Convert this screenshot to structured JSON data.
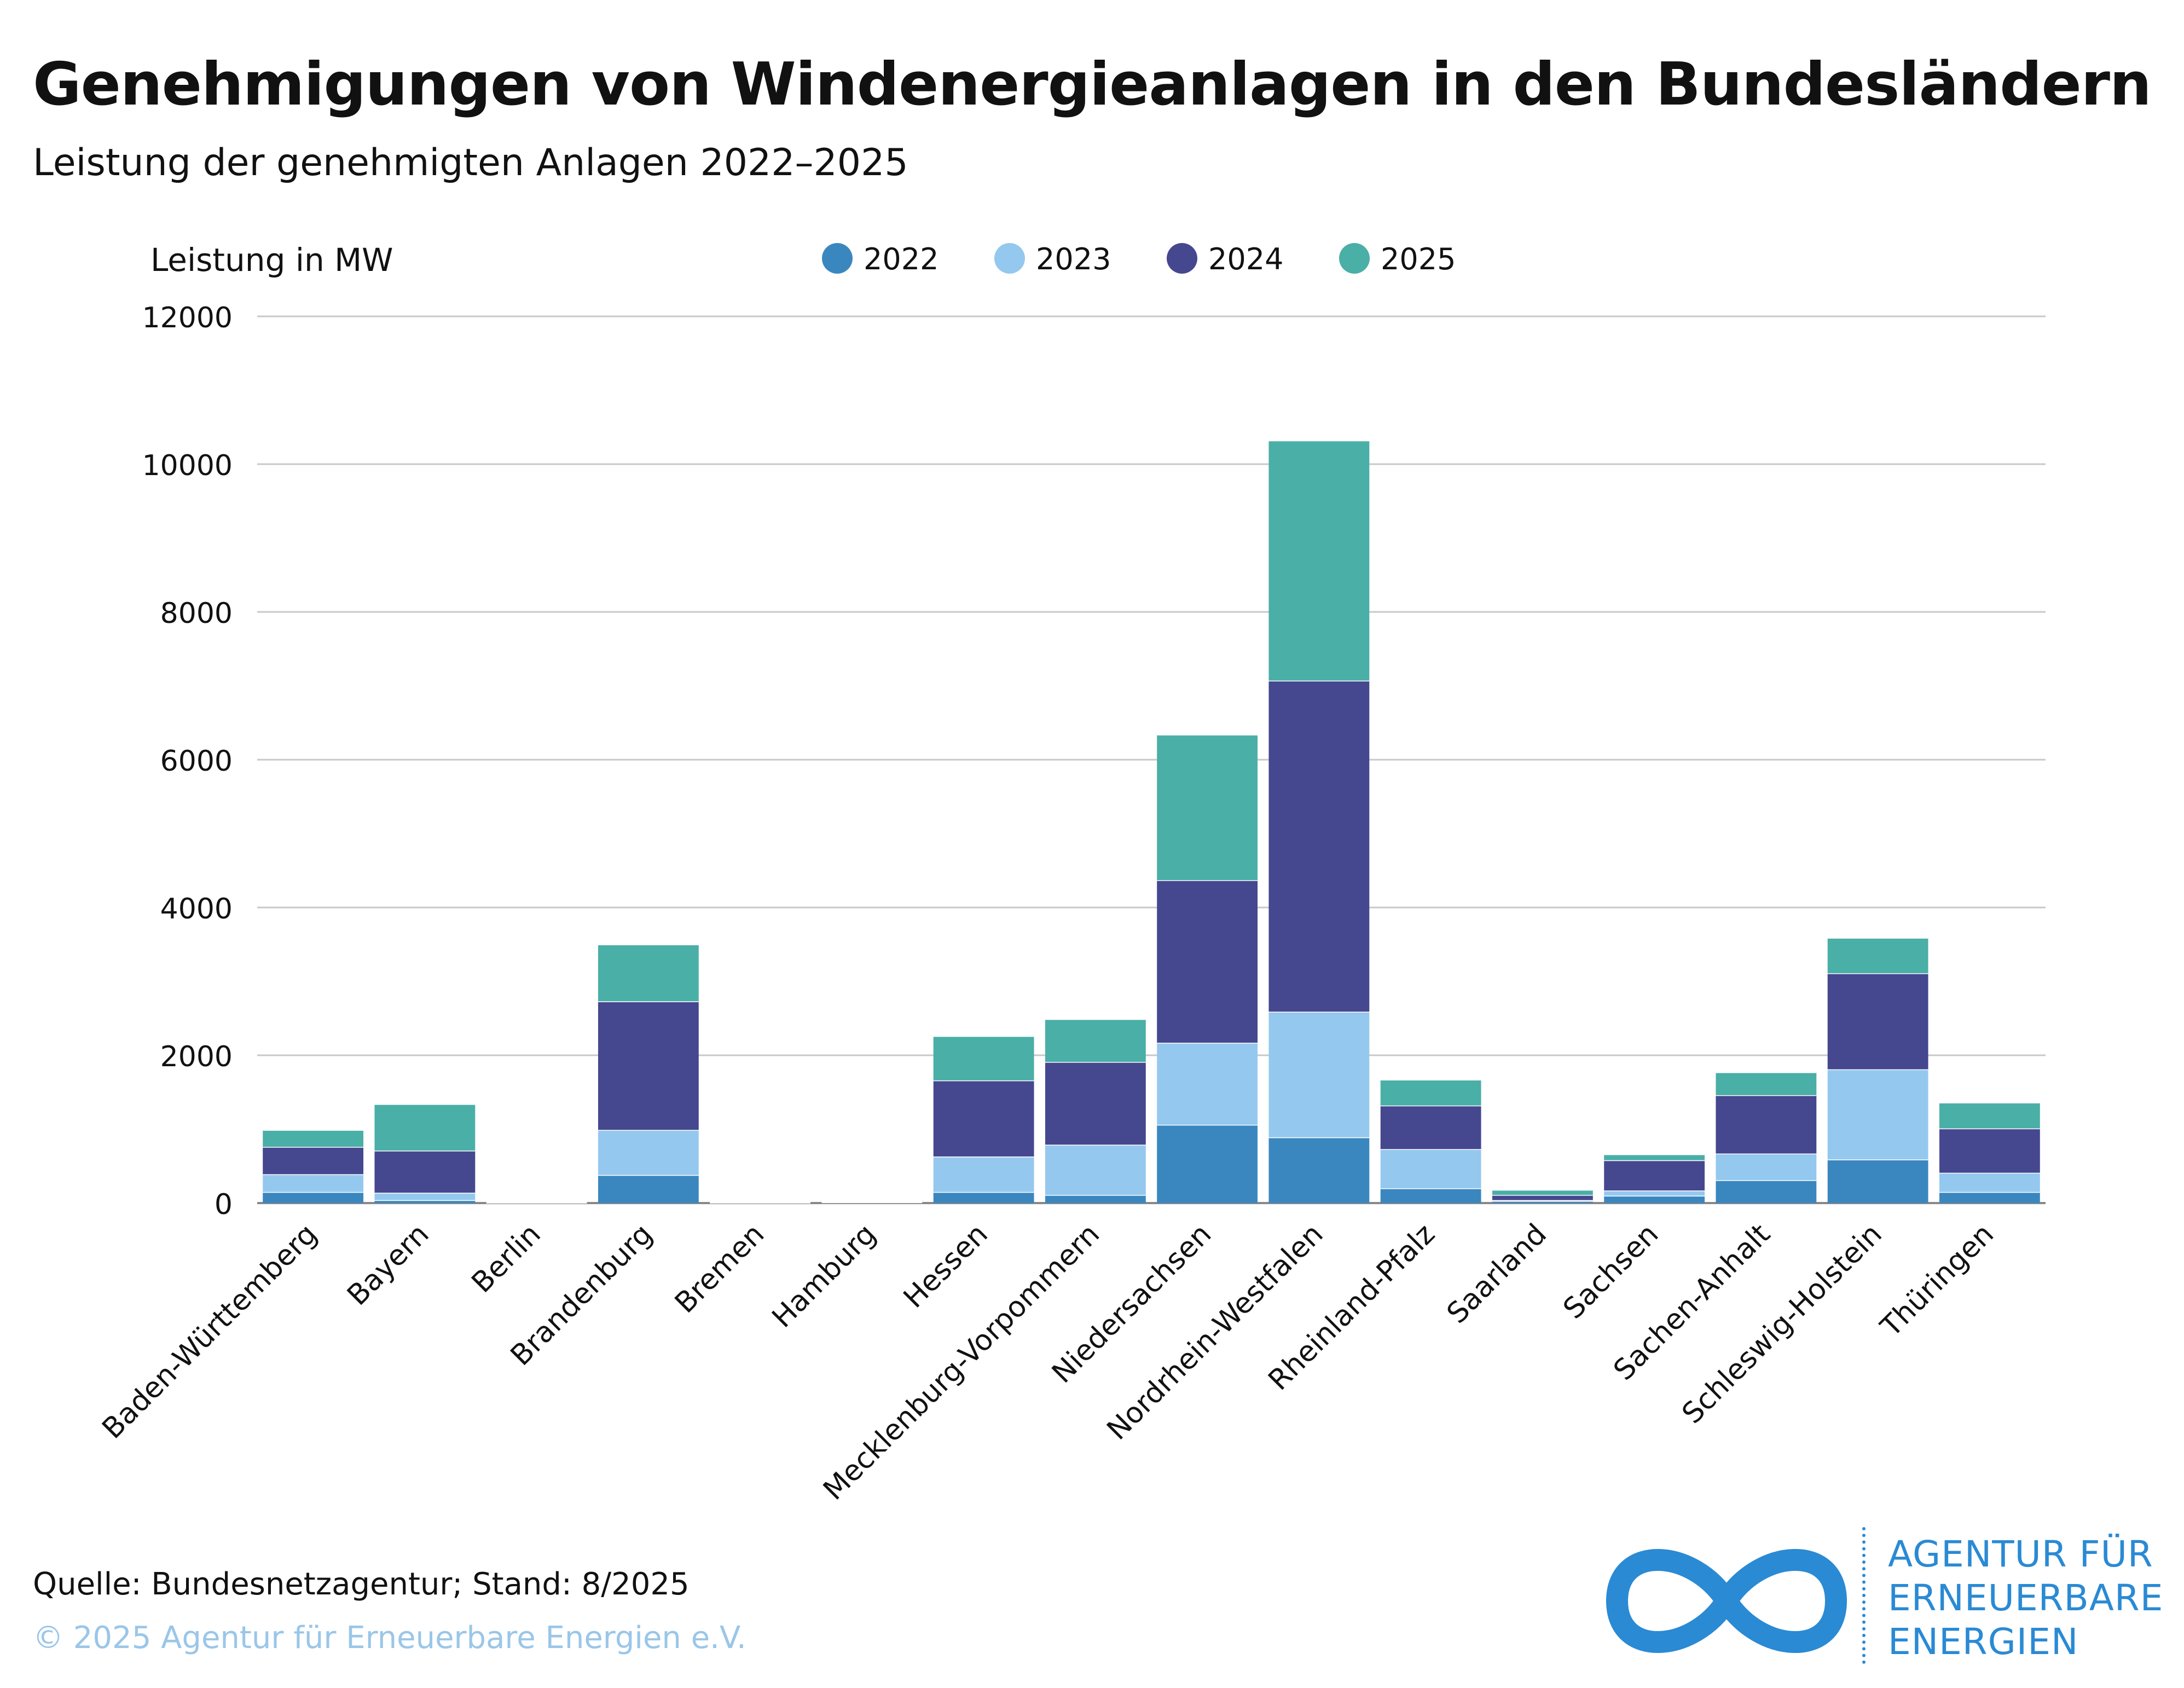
{
  "header": {
    "title": "Genehmigungen von Windenergieanlagen in den Bundesländern",
    "subtitle": "Leistung der genehmigten Anlagen 2022–2025"
  },
  "footer": {
    "source": "Quelle: Bundesnetzagentur; Stand: 8/2025",
    "copyright": "© 2025 Agentur für Erneuerbare Energien e.V."
  },
  "logo": {
    "lines": [
      "AGENTUR FÜR",
      "ERNEUERBARE",
      "ENERGIEN"
    ],
    "color": "#2a8ad4"
  },
  "chart_data": {
    "type": "bar",
    "stacked": true,
    "ylabel": "Leistung in MW",
    "ylim": [
      0,
      12000
    ],
    "yticks": [
      0,
      2000,
      4000,
      6000,
      8000,
      10000,
      12000
    ],
    "grid": true,
    "legend_position": "top",
    "categories": [
      "Baden-Württemberg",
      "Bayern",
      "Berlin",
      "Brandenburg",
      "Bremen",
      "Hamburg",
      "Hessen",
      "Mecklenburg-Vorpommern",
      "Niedersachsen",
      "Nordrhein-Westfalen",
      "Rheinland-Pfalz",
      "Saarland",
      "Sachsen",
      "Sachen-Anhalt",
      "Schleswig-Holstein",
      "Thüringen"
    ],
    "series": [
      {
        "name": "2022",
        "color": "#3a87c0",
        "values": [
          150,
          40,
          0,
          380,
          5,
          10,
          150,
          110,
          1060,
          890,
          200,
          30,
          100,
          310,
          590,
          150
        ]
      },
      {
        "name": "2023",
        "color": "#94c8ee",
        "values": [
          240,
          100,
          0,
          610,
          5,
          10,
          480,
          680,
          1110,
          1700,
          530,
          10,
          70,
          360,
          1220,
          260
        ]
      },
      {
        "name": "2024",
        "color": "#45478f",
        "values": [
          370,
          570,
          5,
          1740,
          5,
          10,
          1030,
          1120,
          2200,
          4480,
          590,
          70,
          410,
          790,
          1300,
          600
        ]
      },
      {
        "name": "2025",
        "color": "#4aafa6",
        "values": [
          230,
          630,
          5,
          770,
          5,
          10,
          600,
          580,
          1970,
          3250,
          350,
          70,
          80,
          310,
          480,
          350
        ]
      }
    ]
  }
}
